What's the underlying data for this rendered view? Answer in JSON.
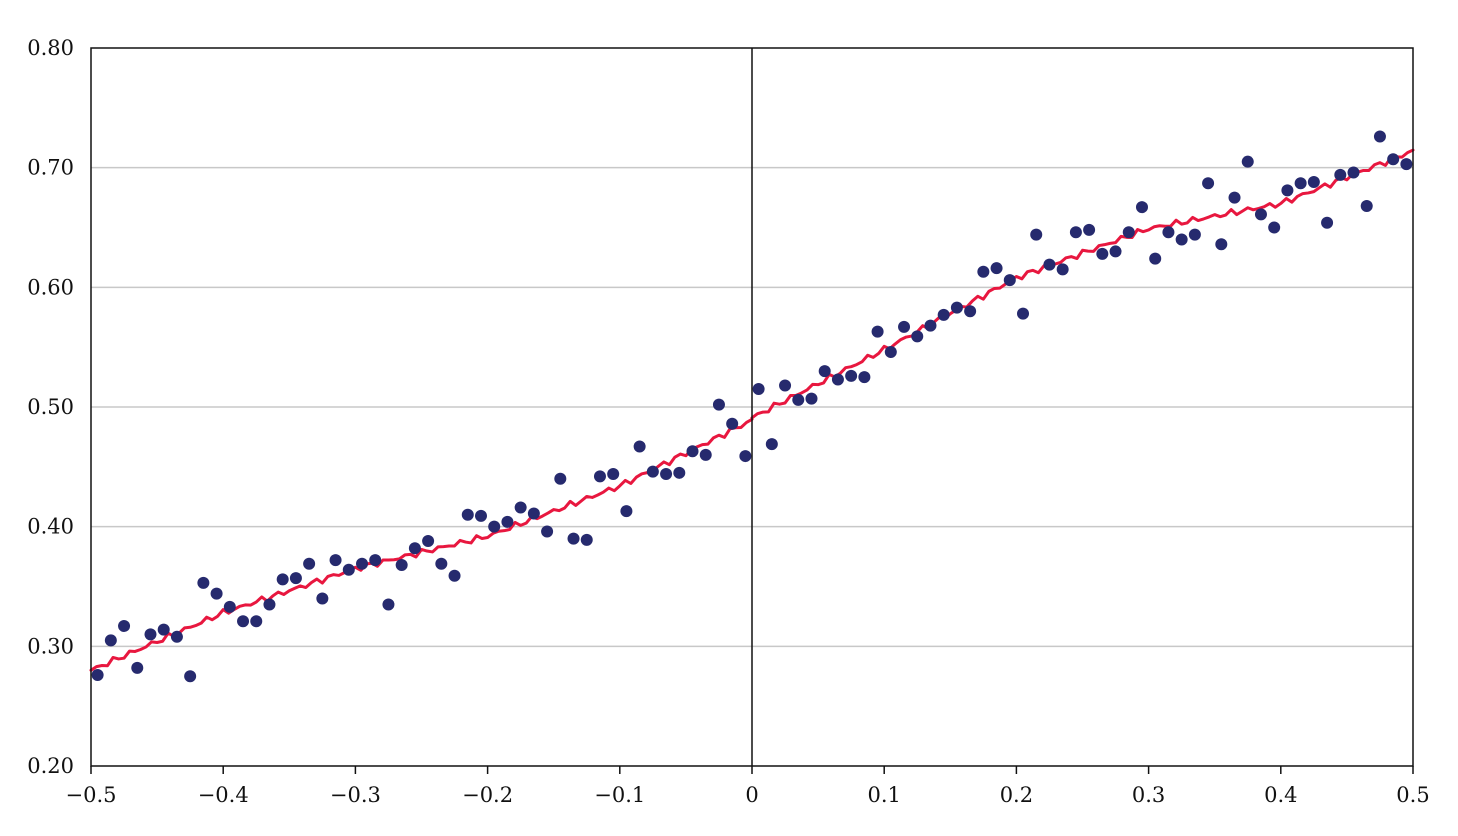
{
  "chart_data": {
    "type": "scatter",
    "title": "",
    "xlabel": "",
    "ylabel": "",
    "xlim": [
      -0.5,
      0.5
    ],
    "ylim": [
      0.2,
      0.8
    ],
    "x_ticks": [
      -0.5,
      -0.4,
      -0.3,
      -0.2,
      -0.1,
      0,
      0.1,
      0.2,
      0.3,
      0.4,
      0.5
    ],
    "x_tick_labels": [
      "−0.5",
      "−0.4",
      "−0.3",
      "−0.2",
      "−0.1",
      "0",
      "0.1",
      "0.2",
      "0.3",
      "0.4",
      "0.5"
    ],
    "y_ticks": [
      0.2,
      0.3,
      0.4,
      0.5,
      0.6,
      0.7,
      0.8
    ],
    "y_tick_labels": [
      "0.20",
      "0.30",
      "0.40",
      "0.50",
      "0.60",
      "0.70",
      "0.80"
    ],
    "grid": "horizontal",
    "vertical_reference_line_x": 0,
    "colors": {
      "points": "#262a6e",
      "fit_line": "#e8173f",
      "grid": "#c8c8c8",
      "axis": "#111111"
    },
    "series": [
      {
        "kind": "scatter",
        "x": [
          -0.495,
          -0.485,
          -0.475,
          -0.465,
          -0.455,
          -0.445,
          -0.435,
          -0.425,
          -0.415,
          -0.405,
          -0.395,
          -0.385,
          -0.375,
          -0.365,
          -0.355,
          -0.345,
          -0.335,
          -0.325,
          -0.315,
          -0.305,
          -0.295,
          -0.285,
          -0.275,
          -0.265,
          -0.255,
          -0.245,
          -0.235,
          -0.225,
          -0.215,
          -0.205,
          -0.195,
          -0.185,
          -0.175,
          -0.165,
          -0.155,
          -0.145,
          -0.135,
          -0.125,
          -0.115,
          -0.105,
          -0.095,
          -0.085,
          -0.075,
          -0.065,
          -0.055,
          -0.045,
          -0.035,
          -0.025,
          -0.015,
          -0.005,
          0.005,
          0.015,
          0.025,
          0.035,
          0.045,
          0.055,
          0.065,
          0.075,
          0.085,
          0.095,
          0.105,
          0.115,
          0.125,
          0.135,
          0.145,
          0.155,
          0.165,
          0.175,
          0.185,
          0.195,
          0.205,
          0.215,
          0.225,
          0.235,
          0.245,
          0.255,
          0.265,
          0.275,
          0.285,
          0.295,
          0.305,
          0.315,
          0.325,
          0.335,
          0.345,
          0.355,
          0.365,
          0.375,
          0.385,
          0.395,
          0.405,
          0.415,
          0.425,
          0.435,
          0.445,
          0.455,
          0.465,
          0.475,
          0.485,
          0.495
        ],
        "y": [
          0.276,
          0.305,
          0.317,
          0.282,
          0.31,
          0.314,
          0.308,
          0.275,
          0.353,
          0.344,
          0.333,
          0.321,
          0.321,
          0.335,
          0.356,
          0.357,
          0.369,
          0.34,
          0.372,
          0.364,
          0.369,
          0.372,
          0.335,
          0.368,
          0.382,
          0.388,
          0.369,
          0.359,
          0.41,
          0.409,
          0.4,
          0.404,
          0.416,
          0.411,
          0.396,
          0.44,
          0.39,
          0.389,
          0.442,
          0.444,
          0.413,
          0.467,
          0.446,
          0.444,
          0.445,
          0.463,
          0.46,
          0.502,
          0.486,
          0.459,
          0.515,
          0.469,
          0.518,
          0.506,
          0.507,
          0.53,
          0.523,
          0.526,
          0.525,
          0.563,
          0.546,
          0.567,
          0.559,
          0.568,
          0.577,
          0.583,
          0.58,
          0.613,
          0.616,
          0.606,
          0.578,
          0.644,
          0.619,
          0.615,
          0.646,
          0.648,
          0.628,
          0.63,
          0.646,
          0.667,
          0.624,
          0.646,
          0.64,
          0.644,
          0.687,
          0.636,
          0.675,
          0.705,
          0.661,
          0.65,
          0.681,
          0.687,
          0.688,
          0.654,
          0.694,
          0.696,
          0.668,
          0.726,
          0.707,
          0.703
        ]
      },
      {
        "kind": "line",
        "segments": [
          {
            "x": [
              -0.5,
              -0.4,
              -0.3,
              -0.2,
              -0.1,
              0
            ],
            "y": [
              0.28,
              0.328,
              0.365,
              0.392,
              0.434,
              0.489
            ]
          },
          {
            "x": [
              0,
              0.1,
              0.2,
              0.3,
              0.4,
              0.5
            ],
            "y": [
              0.491,
              0.548,
              0.608,
              0.649,
              0.67,
              0.714
            ]
          }
        ]
      }
    ]
  }
}
